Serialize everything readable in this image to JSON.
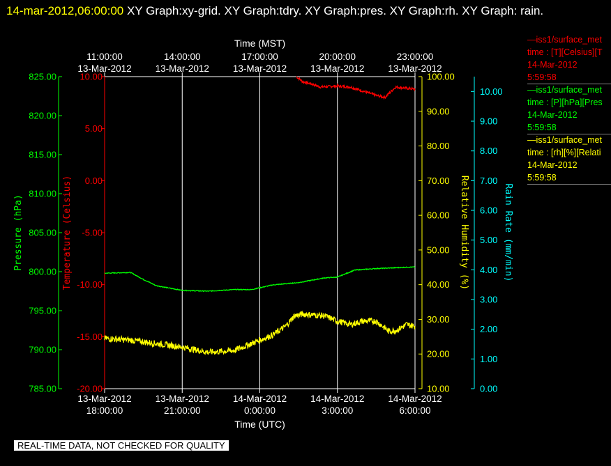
{
  "header": {
    "date": "14-mar-2012,06:00:00",
    "graphs": "XY Graph:xy-grid.  XY Graph:tdry.  XY Graph:pres.  XY Graph:rh.  XY Graph: rain."
  },
  "legend": [
    {
      "name": "—iss1/surface_met",
      "field": "time : [T][Celsius][T",
      "date": "14-Mar-2012",
      "time": "5:59:58",
      "color": "#ff0000"
    },
    {
      "name": "—iss1/surface_met",
      "field": "time : [P][hPa][Pres",
      "date": "14-Mar-2012",
      "time": "5:59:58",
      "color": "#00ff00"
    },
    {
      "name": "—iss1/surface_met",
      "field": "time : [rh][%][Relati",
      "date": "14-Mar-2012",
      "time": "5:59:58",
      "color": "#ffff00"
    }
  ],
  "disclaimer": "REAL-TIME DATA, NOT CHECKED FOR QUALITY",
  "chart_data": {
    "type": "line",
    "colors": {
      "temperature": "#ff0000",
      "pressure": "#00ff00",
      "humidity": "#ffff00",
      "rain": "#00ffff",
      "grid": "#ffffff"
    },
    "top_axis": {
      "label": "Time (MST)",
      "ticks": [
        {
          "t": "2012-03-13T18:00",
          "time": "11:00:00",
          "date": "13-Mar-2012"
        },
        {
          "t": "2012-03-13T21:00",
          "time": "14:00:00",
          "date": "13-Mar-2012"
        },
        {
          "t": "2012-03-14T00:00",
          "time": "17:00:00",
          "date": "13-Mar-2012"
        },
        {
          "t": "2012-03-14T03:00",
          "time": "20:00:00",
          "date": "13-Mar-2012"
        },
        {
          "t": "2012-03-14T06:00",
          "time": "23:00:00",
          "date": "13-Mar-2012"
        }
      ]
    },
    "bottom_axis": {
      "label": "Time (UTC)",
      "ticks": [
        {
          "t": "2012-03-13T18:00",
          "date": "13-Mar-2012",
          "time": "18:00:00"
        },
        {
          "t": "2012-03-13T21:00",
          "date": "13-Mar-2012",
          "time": "21:00:00"
        },
        {
          "t": "2012-03-14T00:00",
          "date": "14-Mar-2012",
          "time": "0:00:00"
        },
        {
          "t": "2012-03-14T03:00",
          "date": "14-Mar-2012",
          "time": "3:00:00"
        },
        {
          "t": "2012-03-14T06:00",
          "date": "14-Mar-2012",
          "time": "6:00:00"
        }
      ]
    },
    "xlim": [
      "2012-03-13T18:00",
      "2012-03-14T06:00"
    ],
    "axes": {
      "pressure": {
        "label": "Pressure (hPa)",
        "ylim": [
          785,
          825
        ],
        "ticks": [
          "785.00",
          "790.00",
          "795.00",
          "800.00",
          "805.00",
          "810.00",
          "815.00",
          "820.00",
          "825.00"
        ]
      },
      "temperature": {
        "label": "Temperature (Celsius)",
        "ylim": [
          -20,
          10
        ],
        "ticks": [
          "-20.00",
          "-15.00",
          "-10.00",
          "-5.00",
          "0.00",
          "5.00",
          "10.00"
        ]
      },
      "humidity": {
        "label": "Relative Humidity (%)",
        "ylim": [
          10,
          100
        ],
        "ticks": [
          "10.00",
          "20.00",
          "30.00",
          "40.00",
          "50.00",
          "60.00",
          "70.00",
          "80.00",
          "90.00",
          "100.00"
        ]
      },
      "rain": {
        "label": "Rain Rate (mm/min)",
        "ylim": [
          0,
          10.5
        ],
        "ticks": [
          "0.00",
          "1.00",
          "2.00",
          "3.00",
          "4.00",
          "5.00",
          "6.00",
          "7.00",
          "8.00",
          "9.00",
          "10.00"
        ]
      }
    },
    "series": [
      {
        "key": "temperature",
        "axis": "temperature",
        "noise": 0.12,
        "points": [
          [
            "2012-03-14T01:25",
            10.0
          ],
          [
            "2012-03-14T01:40",
            9.5
          ],
          [
            "2012-03-14T02:00",
            9.3
          ],
          [
            "2012-03-14T02:20",
            9.0
          ],
          [
            "2012-03-14T03:00",
            9.1
          ],
          [
            "2012-03-14T03:30",
            9.0
          ],
          [
            "2012-03-14T04:00",
            8.6
          ],
          [
            "2012-03-14T04:30",
            8.2
          ],
          [
            "2012-03-14T04:50",
            8.0
          ],
          [
            "2012-03-14T05:05",
            8.6
          ],
          [
            "2012-03-14T05:15",
            9.0
          ],
          [
            "2012-03-14T06:00",
            8.8
          ]
        ]
      },
      {
        "key": "pressure",
        "axis": "pressure",
        "noise": 0.05,
        "points": [
          [
            "2012-03-13T18:00",
            799.8
          ],
          [
            "2012-03-13T19:00",
            799.9
          ],
          [
            "2012-03-13T19:30",
            799.0
          ],
          [
            "2012-03-13T20:00",
            798.2
          ],
          [
            "2012-03-13T21:00",
            797.6
          ],
          [
            "2012-03-13T22:00",
            797.5
          ],
          [
            "2012-03-13T23:00",
            797.7
          ],
          [
            "2012-03-13T23:40",
            797.7
          ],
          [
            "2012-03-14T00:30",
            798.3
          ],
          [
            "2012-03-14T01:30",
            798.6
          ],
          [
            "2012-03-14T02:30",
            799.2
          ],
          [
            "2012-03-14T03:00",
            799.3
          ],
          [
            "2012-03-14T03:40",
            800.2
          ],
          [
            "2012-03-14T04:30",
            800.4
          ],
          [
            "2012-03-14T06:00",
            800.6
          ]
        ]
      },
      {
        "key": "humidity",
        "axis": "humidity",
        "noise": 0.9,
        "points": [
          [
            "2012-03-13T18:00",
            24.5
          ],
          [
            "2012-03-13T19:00",
            24.0
          ],
          [
            "2012-03-13T20:00",
            23.0
          ],
          [
            "2012-03-13T21:00",
            22.0
          ],
          [
            "2012-03-13T22:00",
            20.5
          ],
          [
            "2012-03-13T23:00",
            21.0
          ],
          [
            "2012-03-13T23:30",
            22.5
          ],
          [
            "2012-03-14T00:00",
            24.0
          ],
          [
            "2012-03-14T00:30",
            25.5
          ],
          [
            "2012-03-14T01:00",
            28.0
          ],
          [
            "2012-03-14T01:20",
            31.0
          ],
          [
            "2012-03-14T01:40",
            31.5
          ],
          [
            "2012-03-14T02:30",
            31.0
          ],
          [
            "2012-03-14T03:00",
            29.5
          ],
          [
            "2012-03-14T03:30",
            28.5
          ],
          [
            "2012-03-14T04:00",
            29.5
          ],
          [
            "2012-03-14T04:30",
            29.5
          ],
          [
            "2012-03-14T04:45",
            28.0
          ],
          [
            "2012-03-14T05:00",
            26.5
          ],
          [
            "2012-03-14T05:20",
            27.0
          ],
          [
            "2012-03-14T05:40",
            28.5
          ],
          [
            "2012-03-14T06:00",
            28.0
          ]
        ]
      }
    ]
  }
}
